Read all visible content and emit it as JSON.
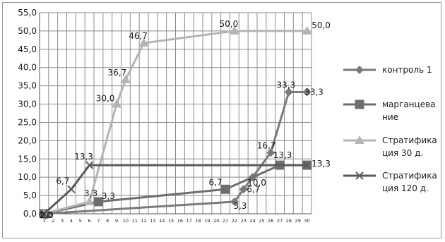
{
  "chart_data": {
    "type": "line",
    "title": "",
    "xlabel": "",
    "ylabel": "",
    "ylim": [
      0,
      55
    ],
    "y_ticks": [
      0,
      5,
      10,
      15,
      20,
      25,
      30,
      35,
      40,
      45,
      50,
      55
    ],
    "y_tick_labels": [
      "0,0",
      "5,0",
      "10,0",
      "15,0",
      "20,0",
      "25,0",
      "30,0",
      "35,0",
      "40,0",
      "45,0",
      "50,0",
      "55,0"
    ],
    "x_categories": [
      "1",
      "2",
      "3",
      "4",
      "5",
      "6",
      "7",
      "8",
      "9",
      "10",
      "11",
      "12",
      "13",
      "14",
      "15",
      "16",
      "17",
      "18",
      "19",
      "20",
      "21",
      "22",
      "23",
      "24",
      "25",
      "26",
      "27",
      "28",
      "29",
      "30"
    ],
    "grid": true,
    "legend_position": "right",
    "series": [
      {
        "name": "контроль 1",
        "color": "#7a7a7a",
        "marker": "diamond",
        "points": [
          {
            "x": 1,
            "y": 0,
            "label": "0,0"
          },
          {
            "x": 22,
            "y": 3.3,
            "label": "3,3"
          },
          {
            "x": 23,
            "y": 6.7,
            "label": "6,7"
          },
          {
            "x": 24,
            "y": 10.0,
            "label": "10,0"
          },
          {
            "x": 26,
            "y": 16.7,
            "label": "16,7"
          },
          {
            "x": 28,
            "y": 33.3,
            "label": "33,3"
          },
          {
            "x": 30,
            "y": 33.3,
            "label": "33,3"
          }
        ]
      },
      {
        "name": "марганцевание",
        "color": "#6e6e6e",
        "marker": "square",
        "points": [
          {
            "x": 1,
            "y": 0,
            "label": "0,0"
          },
          {
            "x": 7,
            "y": 3.3,
            "label": "3,3"
          },
          {
            "x": 21,
            "y": 6.7,
            "label": "6,7"
          },
          {
            "x": 27,
            "y": 13.3,
            "label": "13,3"
          },
          {
            "x": 30,
            "y": 13.3,
            "label": "13,3"
          }
        ]
      },
      {
        "name": "Стратификация 30 д.",
        "color": "#b4b4b4",
        "marker": "triangle",
        "points": [
          {
            "x": 1,
            "y": 0,
            "label": "0,0"
          },
          {
            "x": 6,
            "y": 3.3,
            "label": "3,3"
          },
          {
            "x": 9,
            "y": 30.0,
            "label": "30,0"
          },
          {
            "x": 10,
            "y": 36.7,
            "label": "36,7"
          },
          {
            "x": 12,
            "y": 46.7,
            "label": "46,7"
          },
          {
            "x": 22,
            "y": 50.0,
            "label": "50,0"
          },
          {
            "x": 30,
            "y": 50.0,
            "label": "50,0"
          }
        ]
      },
      {
        "name": "Стратификация 120 д.",
        "color": "#5a5a5a",
        "marker": "x",
        "points": [
          {
            "x": 1,
            "y": 0,
            "label": "0,0"
          },
          {
            "x": 4,
            "y": 6.7,
            "label": "6,7"
          },
          {
            "x": 6,
            "y": 13.3,
            "label": "13,3"
          },
          {
            "x": 30,
            "y": 13.3,
            "label": ""
          }
        ]
      }
    ],
    "legend": [
      {
        "line1": "контроль 1",
        "line2": ""
      },
      {
        "line1": "марганцева",
        "line2": "ние"
      },
      {
        "line1": "Стратифика",
        "line2": "ция 30 д."
      },
      {
        "line1": "Стратифика",
        "line2": "ция 120 д."
      }
    ]
  }
}
